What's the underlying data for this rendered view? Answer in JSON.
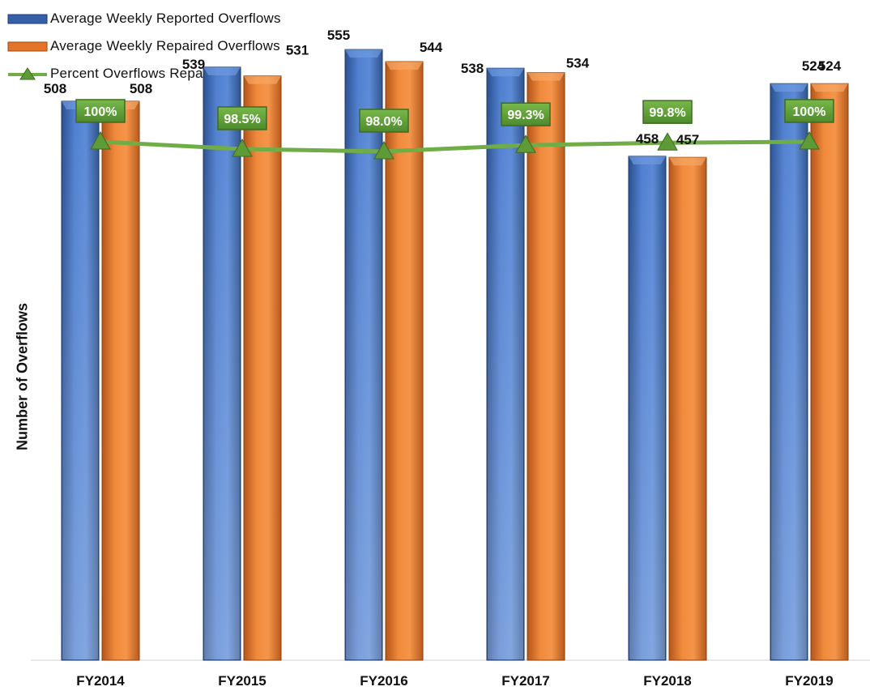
{
  "chart_data": {
    "type": "bar",
    "title": "",
    "xlabel": "",
    "ylabel": "Number of Overflows",
    "categories": [
      "FY2014",
      "FY2015",
      "FY2016",
      "FY2017",
      "FY2018",
      "FY2019"
    ],
    "series": [
      {
        "name": "Average Weekly Reported Overflows",
        "type": "bar",
        "color": "#4472c4",
        "values": [
          508,
          539,
          555,
          538,
          458,
          524
        ],
        "labels": [
          "508",
          "539",
          "555",
          "538",
          "458",
          "524"
        ]
      },
      {
        "name": "Average Weekly Repaired Overflows",
        "type": "bar",
        "color": "#ed7d31",
        "values": [
          508,
          531,
          544,
          534,
          457,
          524
        ],
        "labels": [
          "508",
          "531",
          "544",
          "534",
          "457",
          "524"
        ]
      },
      {
        "name": "Percent Overflows Repaired",
        "type": "line",
        "color": "#70ad47",
        "marker": "triangle",
        "values": [
          100,
          98.5,
          98.0,
          99.3,
          99.8,
          100
        ],
        "labels": [
          "100%",
          "98.5%",
          "98.0%",
          "99.3%",
          "99.8%",
          "100%"
        ]
      }
    ],
    "ylim": [
      0,
      600
    ],
    "secondary_ylim": [
      80,
      101
    ],
    "grid": false,
    "legend_position": "top-left"
  }
}
